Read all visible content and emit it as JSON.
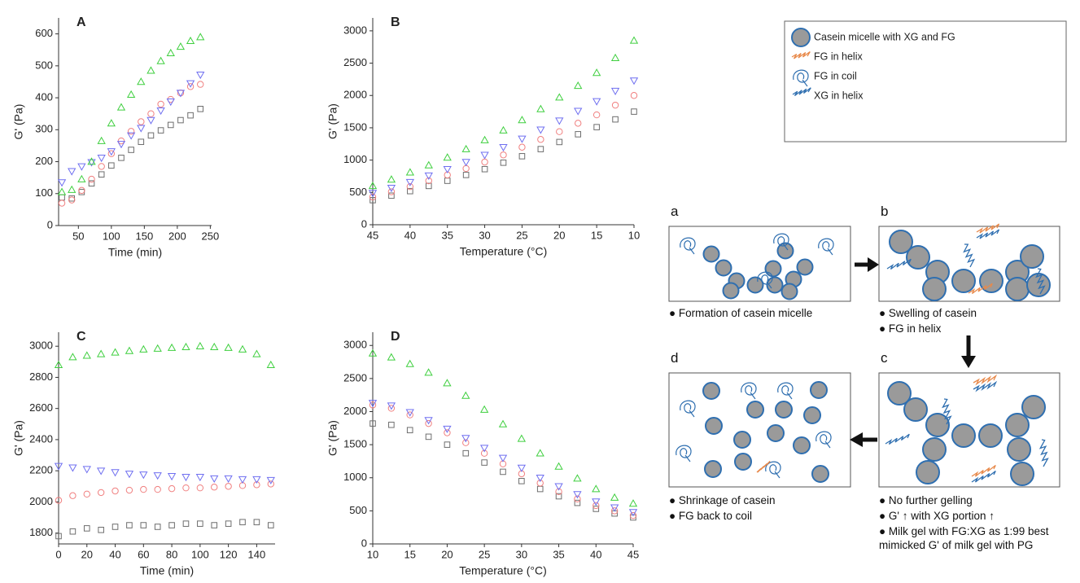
{
  "chart_data": [
    {
      "type": "scatter",
      "title": "A",
      "xlabel": "Time (min)",
      "ylabel": "G' (Pa)",
      "xlim": [
        20,
        252
      ],
      "xticks": [
        50,
        100,
        150,
        200,
        250
      ],
      "ylim": [
        0,
        650
      ],
      "yticks": [
        0,
        100,
        200,
        300,
        400,
        500,
        600
      ],
      "x": [
        25,
        40,
        55,
        70,
        85,
        100,
        115,
        130,
        145,
        160,
        175,
        190,
        205,
        220,
        235
      ],
      "series": [
        {
          "color": "#6e6e6e",
          "marker": "square",
          "values": [
            88,
            85,
            105,
            132,
            160,
            188,
            212,
            237,
            262,
            282,
            298,
            315,
            330,
            345,
            365
          ]
        },
        {
          "color": "#f07f7f",
          "marker": "circle",
          "values": [
            70,
            80,
            110,
            145,
            185,
            225,
            265,
            295,
            325,
            350,
            380,
            395,
            415,
            435,
            442
          ]
        },
        {
          "color": "#6f6ff0",
          "marker": "triangle-down",
          "values": [
            135,
            170,
            185,
            198,
            212,
            232,
            255,
            282,
            305,
            330,
            360,
            388,
            415,
            445,
            472
          ]
        },
        {
          "color": "#3fcf3f",
          "marker": "triangle-up",
          "values": [
            105,
            112,
            145,
            200,
            265,
            320,
            370,
            410,
            450,
            485,
            515,
            540,
            560,
            578,
            590
          ]
        }
      ]
    },
    {
      "type": "scatter",
      "title": "B",
      "xlabel": "Temperature (°C)",
      "ylabel": "G' (Pa)",
      "xlim": [
        45,
        10
      ],
      "xticks": [
        45,
        40,
        35,
        30,
        25,
        20,
        15,
        10
      ],
      "ylim": [
        0,
        3200
      ],
      "yticks": [
        0,
        500,
        1000,
        1500,
        2000,
        2500,
        3000
      ],
      "x": [
        45,
        42.5,
        40,
        37.5,
        35,
        32.5,
        30,
        27.5,
        25,
        22.5,
        20,
        17.5,
        15,
        12.5,
        10
      ],
      "series": [
        {
          "color": "#6e6e6e",
          "marker": "square",
          "values": [
            380,
            450,
            520,
            600,
            680,
            770,
            860,
            960,
            1060,
            1170,
            1280,
            1400,
            1510,
            1630,
            1750
          ]
        },
        {
          "color": "#f07f7f",
          "marker": "circle",
          "values": [
            430,
            510,
            590,
            680,
            770,
            870,
            970,
            1080,
            1200,
            1320,
            1440,
            1570,
            1700,
            1850,
            2000
          ]
        },
        {
          "color": "#6f6ff0",
          "marker": "triangle-down",
          "values": [
            490,
            570,
            660,
            760,
            860,
            970,
            1080,
            1200,
            1330,
            1470,
            1610,
            1760,
            1910,
            2070,
            2230
          ]
        },
        {
          "color": "#3fcf3f",
          "marker": "triangle-up",
          "values": [
            600,
            700,
            810,
            920,
            1040,
            1170,
            1310,
            1460,
            1620,
            1790,
            1970,
            2150,
            2350,
            2580,
            2850
          ]
        }
      ]
    },
    {
      "type": "scatter",
      "title": "C",
      "xlabel": "Time (min)",
      "ylabel": "G' (Pa)",
      "xlim": [
        0,
        153
      ],
      "xticks": [
        0,
        20,
        40,
        60,
        80,
        100,
        120,
        140
      ],
      "ylim": [
        1730,
        3090
      ],
      "yticks": [
        1800,
        2000,
        2200,
        2400,
        2600,
        2800,
        3000
      ],
      "x": [
        0,
        10,
        20,
        30,
        40,
        50,
        60,
        70,
        80,
        90,
        100,
        110,
        120,
        130,
        140,
        150
      ],
      "series": [
        {
          "color": "#6e6e6e",
          "marker": "square",
          "values": [
            1780,
            1810,
            1830,
            1820,
            1840,
            1850,
            1850,
            1840,
            1850,
            1860,
            1860,
            1850,
            1860,
            1870,
            1870,
            1850
          ]
        },
        {
          "color": "#f07f7f",
          "marker": "circle",
          "values": [
            2010,
            2040,
            2050,
            2060,
            2070,
            2075,
            2080,
            2080,
            2085,
            2090,
            2090,
            2095,
            2100,
            2105,
            2110,
            2115
          ]
        },
        {
          "color": "#6f6ff0",
          "marker": "triangle-down",
          "values": [
            2230,
            2220,
            2210,
            2200,
            2190,
            2180,
            2175,
            2170,
            2165,
            2160,
            2160,
            2150,
            2150,
            2145,
            2145,
            2140
          ]
        },
        {
          "color": "#3fcf3f",
          "marker": "triangle-up",
          "values": [
            2880,
            2930,
            2940,
            2950,
            2960,
            2970,
            2980,
            2985,
            2990,
            2995,
            3000,
            2995,
            2990,
            2980,
            2950,
            2880
          ]
        }
      ]
    },
    {
      "type": "scatter",
      "title": "D",
      "xlabel": "Temperature (°C)",
      "ylabel": "G' (Pa)",
      "xlim": [
        10,
        45
      ],
      "xticks": [
        10,
        15,
        20,
        25,
        30,
        35,
        40,
        45
      ],
      "ylim": [
        0,
        3200
      ],
      "yticks": [
        0,
        500,
        1000,
        1500,
        2000,
        2500,
        3000
      ],
      "x": [
        10,
        12.5,
        15,
        17.5,
        20,
        22.5,
        25,
        27.5,
        30,
        32.5,
        35,
        37.5,
        40,
        42.5,
        45
      ],
      "series": [
        {
          "color": "#6e6e6e",
          "marker": "square",
          "values": [
            1820,
            1800,
            1720,
            1620,
            1500,
            1370,
            1230,
            1090,
            950,
            830,
            720,
            620,
            530,
            460,
            400
          ]
        },
        {
          "color": "#f07f7f",
          "marker": "circle",
          "values": [
            2100,
            2050,
            1950,
            1820,
            1680,
            1530,
            1370,
            1210,
            1060,
            920,
            790,
            680,
            580,
            500,
            430
          ]
        },
        {
          "color": "#6f6ff0",
          "marker": "triangle-down",
          "values": [
            2130,
            2090,
            1990,
            1870,
            1740,
            1600,
            1450,
            1300,
            1150,
            1000,
            870,
            750,
            640,
            550,
            480
          ]
        },
        {
          "color": "#3fcf3f",
          "marker": "triangle-up",
          "values": [
            2880,
            2820,
            2720,
            2590,
            2430,
            2240,
            2030,
            1810,
            1590,
            1370,
            1170,
            990,
            830,
            700,
            610
          ]
        }
      ]
    }
  ],
  "diagram": {
    "legend": [
      "Casein micelle with XG and FG",
      "FG in helix",
      "FG in coil",
      "XG in helix"
    ],
    "panels": [
      {
        "label": "a",
        "notes": [
          "Formation of casein micelle"
        ]
      },
      {
        "label": "b",
        "notes": [
          "Swelling of casein",
          "FG in helix"
        ]
      },
      {
        "label": "c",
        "notes": [
          "No further gelling",
          "G'  ↑ with XG portion ↑",
          "Milk gel with FG:XG as 1:99 best mimicked G' of milk gel with PG"
        ]
      },
      {
        "label": "d",
        "notes": [
          "Shrinkage of casein",
          "FG back to coil"
        ]
      }
    ]
  }
}
